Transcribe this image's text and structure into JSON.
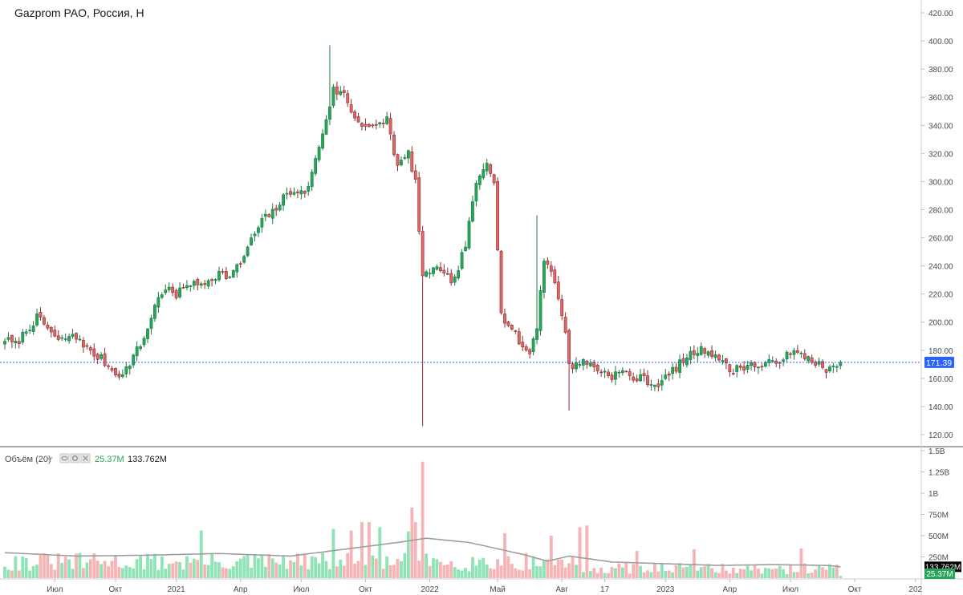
{
  "header": {
    "title": "Gazprom PAO, Россия, Н"
  },
  "volume_legend": {
    "label": "Объём (20)",
    "last_volume": "25.37M",
    "ma_value": "133.762M"
  },
  "colors": {
    "up_body": "#26a65b",
    "up_wick": "#1f7a44",
    "down_body": "#e06666",
    "down_wick": "#8a3030",
    "vol_up": "#8fe3b6",
    "vol_down": "#f6b4b4",
    "vol_ma": "#9e9e9e",
    "price_line": "#2962ff",
    "price_tag": "#2962ff",
    "ma_tag": "#000000",
    "vol_tag": "#26a65b"
  },
  "chart_data": [
    {
      "type": "candlestick",
      "title": "Gazprom PAO, Россия, Н",
      "last_price": 171.39,
      "last_price_label": "171.39",
      "ylim": [
        120,
        420
      ],
      "y_ticks": [
        "120.00",
        "140.00",
        "160.00",
        "180.00",
        "200.00",
        "220.00",
        "240.00",
        "260.00",
        "280.00",
        "300.00",
        "320.00",
        "340.00",
        "360.00",
        "380.00",
        "400.00",
        "420.00"
      ],
      "x_ticks": [
        "Июл",
        "Окт",
        "2021",
        "Апр",
        "Июл",
        "Окт",
        "2022",
        "Май",
        "Авг",
        "17",
        "2023",
        "Апр",
        "Июл",
        "Окт",
        "202"
      ],
      "anchors": [
        [
          0,
          188
        ],
        [
          3,
          184
        ],
        [
          6,
          194
        ],
        [
          9,
          203
        ],
        [
          12,
          196
        ],
        [
          15,
          186
        ],
        [
          18,
          190
        ],
        [
          21,
          188
        ],
        [
          24,
          178
        ],
        [
          27,
          174
        ],
        [
          30,
          166
        ],
        [
          33,
          162
        ],
        [
          36,
          176
        ],
        [
          39,
          188
        ],
        [
          42,
          212
        ],
        [
          45,
          225
        ],
        [
          48,
          218
        ],
        [
          51,
          228
        ],
        [
          54,
          226
        ],
        [
          57,
          230
        ],
        [
          60,
          235
        ],
        [
          63,
          232
        ],
        [
          66,
          242
        ],
        [
          69,
          258
        ],
        [
          72,
          272
        ],
        [
          75,
          278
        ],
        [
          78,
          288
        ],
        [
          81,
          295
        ],
        [
          84,
          290
        ],
        [
          87,
          315
        ],
        [
          90,
          345
        ],
        [
          92,
          365
        ],
        [
          95,
          362
        ],
        [
          98,
          345
        ],
        [
          101,
          340
        ],
        [
          104,
          338
        ],
        [
          107,
          345
        ],
        [
          110,
          310
        ],
        [
          113,
          320
        ],
        [
          115,
          300
        ],
        [
          117,
          230
        ],
        [
          120,
          240
        ],
        [
          123,
          232
        ],
        [
          126,
          230
        ],
        [
          129,
          255
        ],
        [
          132,
          298
        ],
        [
          135,
          315
        ],
        [
          137,
          302
        ],
        [
          139,
          205
        ],
        [
          142,
          195
        ],
        [
          145,
          182
        ],
        [
          147,
          178
        ],
        [
          149,
          198
        ],
        [
          151,
          245
        ],
        [
          153,
          238
        ],
        [
          155,
          215
        ],
        [
          157,
          195
        ],
        [
          158,
          168
        ],
        [
          161,
          172
        ],
        [
          164,
          170
        ],
        [
          167,
          165
        ],
        [
          170,
          162
        ],
        [
          173,
          165
        ],
        [
          176,
          160
        ],
        [
          179,
          160
        ],
        [
          182,
          155
        ],
        [
          185,
          160
        ],
        [
          188,
          168
        ],
        [
          191,
          175
        ],
        [
          194,
          180
        ],
        [
          197,
          180
        ],
        [
          200,
          175
        ],
        [
          203,
          165
        ],
        [
          206,
          168
        ],
        [
          209,
          170
        ],
        [
          212,
          168
        ],
        [
          215,
          172
        ],
        [
          218,
          175
        ],
        [
          221,
          178
        ],
        [
          224,
          176
        ],
        [
          227,
          172
        ],
        [
          230,
          165
        ],
        [
          233,
          168
        ],
        [
          234,
          171
        ]
      ]
    },
    {
      "type": "bar",
      "title": "Объём (20)",
      "ylim": [
        0,
        1.5
      ],
      "units": "B",
      "y_ticks": [
        "250M",
        "500M",
        "750M",
        "1B",
        "1.25B",
        "1.5B"
      ],
      "ma_last": 0.133762,
      "last": 0.02537,
      "spikes": [
        [
          117,
          1.37
        ],
        [
          115,
          0.66
        ],
        [
          114,
          0.83
        ],
        [
          113,
          0.55
        ],
        [
          92,
          0.58
        ],
        [
          97,
          0.56
        ],
        [
          100,
          0.66
        ],
        [
          102,
          0.66
        ],
        [
          105,
          0.6
        ],
        [
          55,
          0.56
        ],
        [
          140,
          0.53
        ],
        [
          161,
          0.6
        ],
        [
          163,
          0.62
        ],
        [
          153,
          0.5
        ],
        [
          177,
          0.32
        ],
        [
          193,
          0.34
        ],
        [
          223,
          0.35
        ]
      ],
      "ma_anchors": [
        [
          0,
          0.3
        ],
        [
          20,
          0.26
        ],
        [
          40,
          0.27
        ],
        [
          60,
          0.29
        ],
        [
          80,
          0.26
        ],
        [
          95,
          0.34
        ],
        [
          110,
          0.42
        ],
        [
          118,
          0.47
        ],
        [
          130,
          0.42
        ],
        [
          145,
          0.28
        ],
        [
          152,
          0.2
        ],
        [
          158,
          0.26
        ],
        [
          170,
          0.19
        ],
        [
          185,
          0.17
        ],
        [
          200,
          0.15
        ],
        [
          215,
          0.16
        ],
        [
          230,
          0.15
        ],
        [
          234,
          0.134
        ]
      ]
    }
  ]
}
